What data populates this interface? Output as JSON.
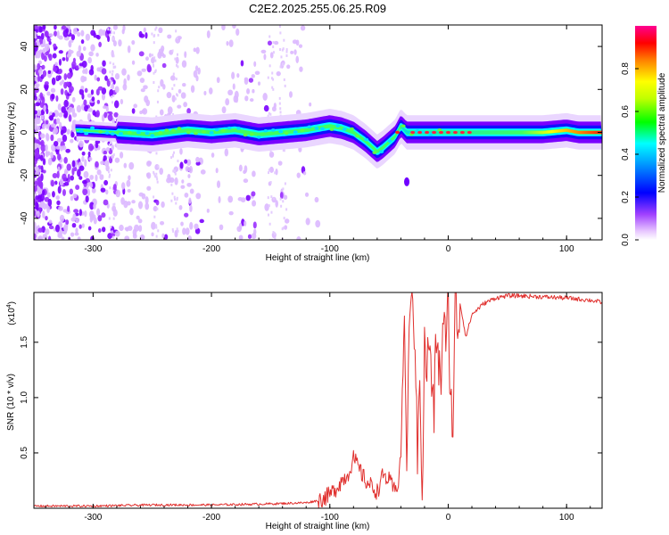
{
  "title": "C2E2.2025.255.06.25.R09",
  "chart_data": [
    {
      "type": "heatmap",
      "xlabel": "Height of straight line (km)",
      "ylabel": "Frequency (Hz)",
      "xlim": [
        -350,
        130
      ],
      "ylim": [
        -50,
        50
      ],
      "xticks": [
        -300,
        -200,
        -100,
        0,
        100
      ],
      "yticks": [
        -40,
        -20,
        0,
        20,
        40
      ],
      "colorbar": {
        "label": "Normalized spectral amplitude",
        "range": [
          0,
          1
        ],
        "ticks": [
          0.0,
          0.2,
          0.4,
          0.6,
          0.8
        ],
        "tick_labels": [
          "0.0",
          "0.2",
          "0.4",
          "0.6",
          "0.8"
        ],
        "colormap": [
          "#ffffff",
          "#e0b0ff",
          "#8000ff",
          "#0000ff",
          "#00ffff",
          "#00ff00",
          "#ffff00",
          "#ff8000",
          "#ff0000",
          "#ff0080"
        ]
      },
      "ridge": {
        "x": [
          -312,
          -280,
          -250,
          -220,
          -200,
          -180,
          -160,
          -140,
          -120,
          -100,
          -90,
          -80,
          -70,
          -60,
          -55,
          -45,
          -40,
          -35,
          -30,
          -20,
          -10,
          0,
          20,
          50,
          80,
          100,
          110,
          130
        ],
        "y": [
          1,
          0,
          -1,
          1,
          0,
          1,
          -1,
          0,
          1,
          3,
          2,
          0,
          -4,
          -9,
          -7,
          -2,
          3,
          0,
          0,
          0,
          0,
          0,
          0,
          0,
          0,
          1,
          0,
          0
        ]
      },
      "isolated_feature": {
        "x": -35,
        "y": -23
      }
    },
    {
      "type": "line",
      "xlabel": "Height of straight line (km)",
      "ylabel": "SNR (10 * v/v)",
      "y_scale_label": "(x10",
      "y_scale_exponent": "4",
      "xlim": [
        -350,
        130
      ],
      "ylim": [
        0,
        1.95
      ],
      "xticks": [
        -300,
        -200,
        -100,
        0,
        100
      ],
      "yticks": [
        0.5,
        1.0,
        1.5
      ],
      "ytick_labels": [
        "0.5",
        "1.0",
        "1.5"
      ],
      "line_color": "#e0302e",
      "series": [
        {
          "x": [
            -350,
            -300,
            -250,
            -200,
            -150,
            -120,
            -110,
            -100,
            -95,
            -90,
            -85,
            -80,
            -75,
            -70,
            -65,
            -60,
            -55,
            -50,
            -45,
            -42,
            -40,
            -37,
            -35,
            -33,
            -30,
            -28,
            -26,
            -24,
            -22,
            -20,
            -18,
            -16,
            -14,
            -12,
            -10,
            -8,
            -6,
            -4,
            -2,
            0,
            2,
            4,
            6,
            8,
            10,
            15,
            20,
            30,
            40,
            50,
            60,
            80,
            100,
            120,
            130
          ],
          "y": [
            0.02,
            0.02,
            0.03,
            0.03,
            0.04,
            0.05,
            0.07,
            0.12,
            0.18,
            0.25,
            0.3,
            0.45,
            0.35,
            0.25,
            0.2,
            0.15,
            0.3,
            0.25,
            0.15,
            0.25,
            0.5,
            1.75,
            0.3,
            1.7,
            1.95,
            1.5,
            0.4,
            1.35,
            0.1,
            1.45,
            1.25,
            1.55,
            1.1,
            0.85,
            1.6,
            1.25,
            1.2,
            1.8,
            1.4,
            1.85,
            1.0,
            0.75,
            1.9,
            1.6,
            1.85,
            1.55,
            1.75,
            1.85,
            1.9,
            1.92,
            1.92,
            1.91,
            1.9,
            1.88,
            1.86
          ]
        }
      ]
    }
  ]
}
